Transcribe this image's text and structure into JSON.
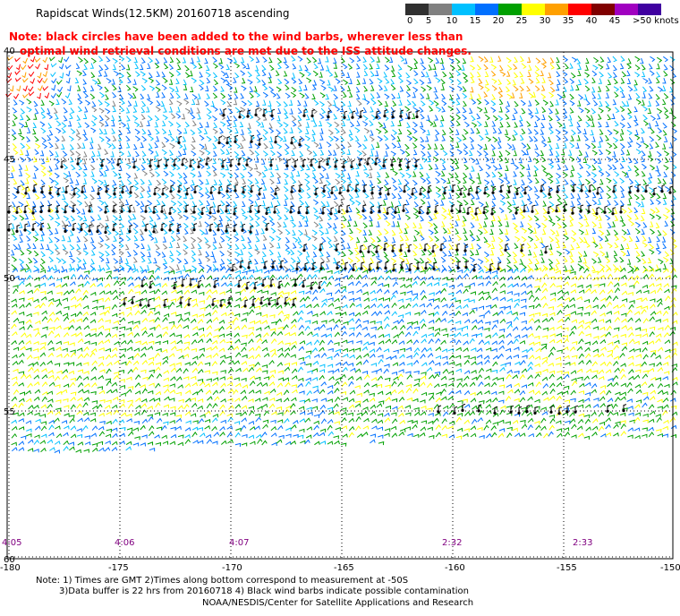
{
  "title": "Rapidscat Winds(12.5KM) 20160718 ascending",
  "note_line1": "Note: black circles have been added to the wind barbs, wherever less than",
  "note_line2": "optimal wind retrieval conditions are met due to the ISS attitude changes.",
  "legend": {
    "labels": [
      "0",
      "5",
      "10",
      "15",
      "20",
      "25",
      "30",
      "35",
      "40",
      "45",
      ">50 knots"
    ],
    "colors": [
      "#303030",
      "#808080",
      "#00c0ff",
      "#0070ff",
      "#00a000",
      "#ffff00",
      "#ffa000",
      "#ff0000",
      "#800000",
      "#a000c0",
      "#4000a0"
    ]
  },
  "lon_labels": [
    "-180",
    "-175",
    "-170",
    "-165",
    "-160",
    "-155",
    "-150"
  ],
  "lat_labels": [
    "40",
    "45",
    "50",
    "55",
    "60"
  ],
  "time_labels": [
    "4:05",
    "4:06",
    "4:07",
    "2:32",
    "2:33"
  ],
  "footer": {
    "line1": "Note: 1) Times are GMT 2)Times along bottom correspond to measurement at -50S",
    "line2": "3)Data buffer is 22 hrs from 20160718 4) Black wind barbs indicate possible contamination",
    "line3": "NOAA/NESDIS/Center for Satellite Applications and Research"
  }
}
